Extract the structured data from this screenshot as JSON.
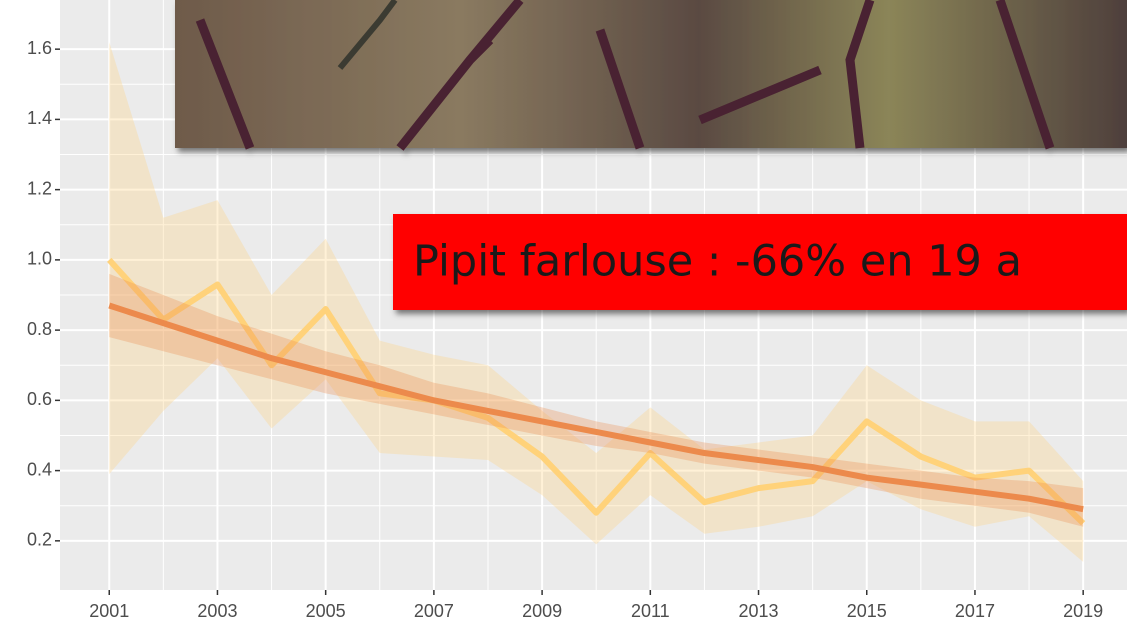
{
  "chart_data": {
    "type": "line",
    "annotation": "Pipit farlouse : -66% en 19 a",
    "x": [
      2001,
      2002,
      2003,
      2004,
      2005,
      2006,
      2007,
      2008,
      2009,
      2010,
      2011,
      2012,
      2013,
      2014,
      2015,
      2016,
      2017,
      2018,
      2019
    ],
    "xlim": [
      2000.09,
      2019.81
    ],
    "xticks": [
      2001,
      2003,
      2005,
      2007,
      2009,
      2011,
      2013,
      2015,
      2017,
      2019
    ],
    "ylim": [
      0.06,
      1.74
    ],
    "yticks": [
      0.2,
      0.4,
      0.6,
      0.8,
      {
        "value": 1,
        "label": "1.0"
      },
      1.2,
      1.4,
      1.6
    ],
    "grid": true,
    "series": [
      {
        "color": "#ffd27a",
        "values": [
          1.0,
          0.83,
          0.93,
          0.7,
          0.86,
          0.62,
          0.6,
          0.55,
          0.44,
          0.28,
          0.45,
          0.31,
          0.35,
          0.37,
          0.54,
          0.44,
          0.38,
          0.4,
          0.25
        ],
        "upper": [
          1.62,
          1.12,
          1.17,
          0.9,
          1.06,
          0.77,
          0.73,
          0.7,
          0.57,
          0.45,
          0.58,
          0.46,
          0.48,
          0.5,
          0.7,
          0.6,
          0.54,
          0.54,
          0.37
        ],
        "lower": [
          0.39,
          0.57,
          0.72,
          0.52,
          0.66,
          0.45,
          0.44,
          0.43,
          0.33,
          0.19,
          0.33,
          0.22,
          0.24,
          0.27,
          0.37,
          0.29,
          0.24,
          0.27,
          0.14
        ]
      },
      {
        "color": "#ec8a4c",
        "values": [
          0.87,
          0.82,
          0.77,
          0.72,
          0.68,
          0.64,
          0.6,
          0.57,
          0.54,
          0.51,
          0.48,
          0.45,
          0.43,
          0.41,
          0.38,
          0.36,
          0.34,
          0.32,
          0.29
        ],
        "upper": [
          0.96,
          0.9,
          0.84,
          0.79,
          0.74,
          0.7,
          0.65,
          0.62,
          0.58,
          0.54,
          0.51,
          0.48,
          0.46,
          0.44,
          0.42,
          0.4,
          0.38,
          0.37,
          0.35
        ],
        "lower": [
          0.78,
          0.74,
          0.7,
          0.66,
          0.62,
          0.59,
          0.56,
          0.53,
          0.5,
          0.47,
          0.45,
          0.42,
          0.4,
          0.38,
          0.35,
          0.32,
          0.3,
          0.28,
          0.24
        ]
      }
    ]
  }
}
